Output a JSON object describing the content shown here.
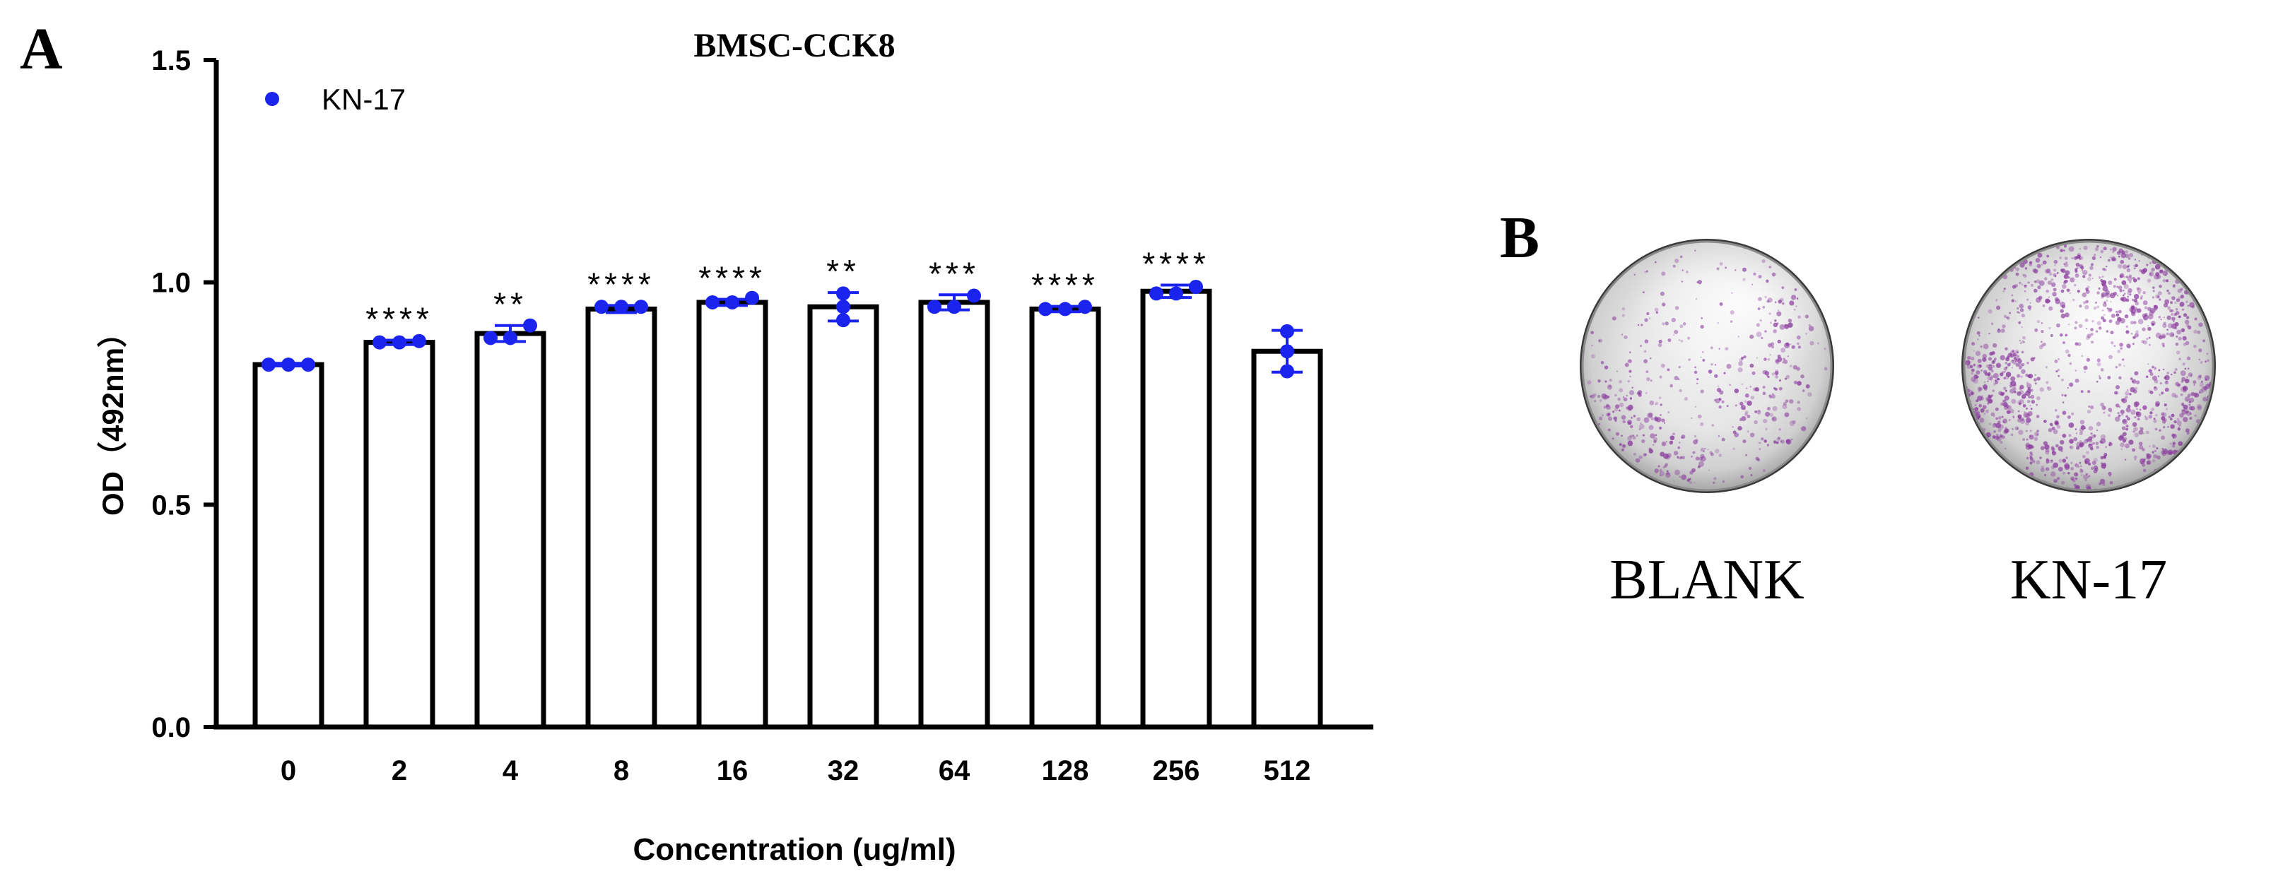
{
  "panel_a": {
    "label": "A",
    "chart_data": {
      "type": "bar",
      "title": "BMSC-CCK8",
      "xlabel": "Concentration (ug/ml)",
      "ylabel": "OD（492nm）",
      "ylim": [
        0,
        1.5
      ],
      "yticks": [
        "0.0",
        "0.5",
        "1.0",
        "1.5"
      ],
      "legend": {
        "label": "KN-17",
        "placement": "top-left"
      },
      "categories": [
        "0",
        "2",
        "4",
        "8",
        "16",
        "32",
        "64",
        "128",
        "256",
        "512"
      ],
      "values": [
        0.815,
        0.865,
        0.885,
        0.94,
        0.955,
        0.945,
        0.955,
        0.94,
        0.98,
        0.845
      ],
      "error": [
        0.003,
        0.005,
        0.018,
        0.008,
        0.007,
        0.032,
        0.017,
        0.006,
        0.014,
        0.047
      ],
      "points": [
        [
          0.815,
          0.815,
          0.815
        ],
        [
          0.865,
          0.865,
          0.868
        ],
        [
          0.875,
          0.875,
          0.903
        ],
        [
          0.945,
          0.945,
          0.945
        ],
        [
          0.955,
          0.955,
          0.965
        ],
        [
          0.915,
          0.945,
          0.975
        ],
        [
          0.945,
          0.945,
          0.97
        ],
        [
          0.94,
          0.94,
          0.945
        ],
        [
          0.975,
          0.975,
          0.99
        ],
        [
          0.8,
          0.845,
          0.89
        ]
      ],
      "significance": [
        "",
        "****",
        "**",
        "****",
        "****",
        "**",
        "***",
        "****",
        "****",
        ""
      ]
    }
  },
  "panel_b": {
    "label": "B",
    "images": [
      {
        "caption": "BLANK",
        "description": "dish-blank"
      },
      {
        "caption": "KN-17",
        "description": "dish-kn17"
      }
    ]
  },
  "colors": {
    "point": "#1a24ee",
    "bar_stroke": "#000000",
    "bar_fill": "#ffffff",
    "stain": "#8a3a9e"
  }
}
